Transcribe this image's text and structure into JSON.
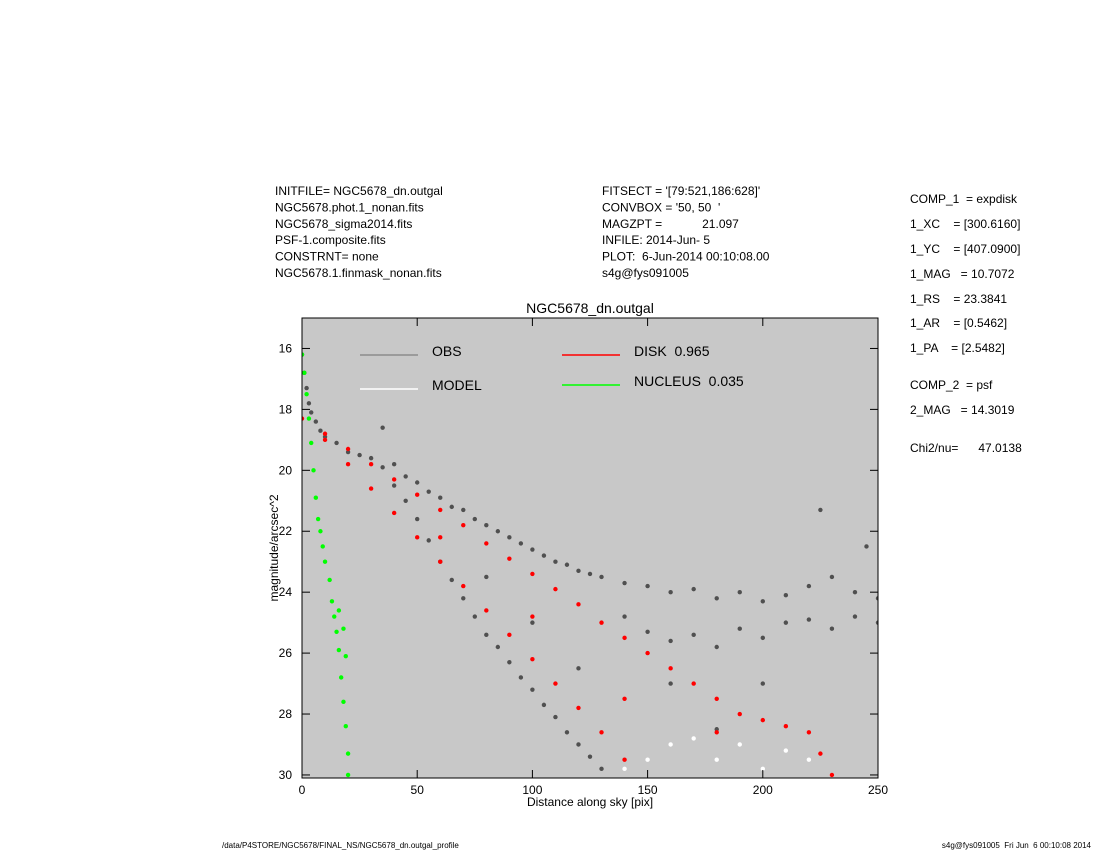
{
  "header": {
    "left": [
      "INITFILE= NGC5678_dn.outgal",
      "NGC5678.phot.1_nonan.fits",
      "NGC5678_sigma2014.fits",
      "PSF-1.composite.fits",
      "CONSTRNT= none",
      "NGC5678.1.finmask_nonan.fits"
    ],
    "middle": [
      "FITSECT = '[79:521,186:628]'",
      "CONVBOX = '50, 50  '",
      "MAGZPT =            21.097",
      "INFILE: 2014-Jun- 5",
      "PLOT:  6-Jun-2014 00:10:08.00",
      "s4g@fys091005"
    ],
    "right": [
      "COMP_1  = expdisk",
      "1_XC    = [300.6160]",
      "1_YC    = [407.0900]",
      "1_MAG   = 10.7072",
      "1_RS    = 23.3841",
      "1_AR    = [0.5462]",
      "1_PA    = [2.5482]",
      "COMP_2  = psf",
      "2_MAG   = 14.3019",
      "Chi2/nu=      47.0138"
    ]
  },
  "footer": {
    "left": "/data/P4STORE/NGC5678/FINAL_NS/NGC5678_dn.outgal_profile",
    "right": "s4g@fys091005  Fri Jun  6 00:10:08 2014"
  },
  "chart_data": {
    "type": "scatter",
    "title": "NGC5678_dn.outgal",
    "x_label": "Distance along sky [pix]",
    "y_label": "magnitude/arcsec^2",
    "xlim": [
      0,
      250
    ],
    "ylim": [
      15,
      30.1
    ],
    "y_reversed": true,
    "xticks": [
      0,
      50,
      100,
      150,
      200,
      250
    ],
    "yticks": [
      16,
      18,
      20,
      22,
      24,
      26,
      28,
      30
    ],
    "background": "#c8c8c8",
    "series": [
      {
        "name": "OBS",
        "color": "#505050",
        "legend_color": "#8c8c8c",
        "x": [
          0,
          1,
          2,
          3,
          4,
          6,
          8,
          10,
          15,
          20,
          25,
          30,
          35,
          35,
          40,
          40,
          45,
          45,
          50,
          50,
          55,
          55,
          60,
          60,
          65,
          65,
          70,
          70,
          75,
          75,
          80,
          80,
          85,
          85,
          90,
          90,
          95,
          95,
          100,
          100,
          105,
          105,
          110,
          110,
          115,
          115,
          120,
          120,
          125,
          125,
          130,
          130,
          140,
          140,
          150,
          150,
          160,
          160,
          170,
          170,
          180,
          180,
          190,
          190,
          200,
          200,
          210,
          210,
          220,
          220,
          230,
          230,
          240,
          240,
          250,
          250,
          225,
          245,
          100,
          80,
          120,
          160,
          180,
          200
        ],
        "values": [
          16.2,
          16.8,
          17.3,
          17.8,
          18.1,
          18.4,
          18.7,
          18.9,
          19.1,
          19.4,
          19.5,
          19.6,
          18.6,
          19.9,
          19.8,
          20.5,
          20.2,
          21.0,
          20.4,
          21.6,
          20.7,
          22.3,
          20.9,
          23.0,
          21.2,
          23.6,
          21.3,
          24.2,
          21.6,
          24.8,
          21.8,
          25.4,
          22.0,
          25.8,
          22.2,
          26.3,
          22.4,
          26.8,
          22.6,
          27.2,
          22.8,
          27.7,
          23.0,
          28.1,
          23.1,
          28.6,
          23.3,
          29.0,
          23.4,
          29.4,
          23.5,
          29.8,
          23.7,
          24.8,
          23.8,
          25.3,
          24.0,
          25.6,
          23.9,
          25.4,
          24.2,
          25.8,
          24.0,
          25.2,
          24.3,
          25.5,
          24.1,
          25.0,
          23.8,
          24.9,
          23.5,
          25.2,
          24.0,
          24.8,
          24.2,
          25.0,
          21.3,
          22.5,
          25.0,
          23.5,
          26.5,
          27.0,
          28.5,
          27.0
        ]
      },
      {
        "name": "MODEL",
        "color": "#ffffff",
        "legend_color": "#ffffff",
        "x": [
          140,
          150,
          160,
          170,
          180,
          190,
          200,
          210,
          220,
          230
        ],
        "values": [
          29.8,
          29.5,
          29.0,
          28.8,
          29.5,
          29.0,
          29.8,
          29.2,
          29.5,
          30.0
        ]
      },
      {
        "name": "DISK  0.965",
        "color": "#ff0000",
        "legend_color": "#ff0000",
        "x": [
          0,
          10,
          20,
          30,
          40,
          50,
          60,
          70,
          80,
          90,
          100,
          110,
          120,
          130,
          140,
          150,
          160,
          170,
          180,
          190,
          200,
          210,
          220,
          225,
          230,
          10,
          20,
          30,
          40,
          50,
          60,
          70,
          80,
          90,
          100,
          110,
          120,
          130,
          140,
          60,
          100,
          140,
          180
        ],
        "values": [
          18.3,
          18.8,
          19.3,
          19.8,
          20.3,
          20.8,
          21.3,
          21.8,
          22.4,
          22.9,
          23.4,
          23.9,
          24.4,
          25.0,
          25.5,
          26.0,
          26.5,
          27.0,
          27.5,
          28.0,
          28.2,
          28.4,
          28.6,
          29.3,
          30.0,
          19.0,
          19.8,
          20.6,
          21.4,
          22.2,
          23.0,
          23.8,
          24.6,
          25.4,
          26.2,
          27.0,
          27.8,
          28.6,
          29.5,
          22.2,
          24.8,
          27.5,
          28.6
        ]
      },
      {
        "name": "NUCLEUS  0.035",
        "color": "#00ff00",
        "legend_color": "#00ff00",
        "x": [
          0,
          1,
          2,
          3,
          4,
          5,
          6,
          7,
          8,
          9,
          10,
          12,
          13,
          14,
          15,
          16,
          17,
          18,
          19,
          20,
          20,
          16,
          18,
          19
        ],
        "values": [
          16.2,
          16.8,
          17.5,
          18.3,
          19.1,
          20.0,
          20.9,
          21.6,
          22.0,
          22.5,
          23.0,
          23.6,
          24.3,
          24.8,
          25.3,
          25.9,
          26.8,
          27.6,
          28.4,
          29.3,
          30.0,
          24.6,
          25.2,
          26.1
        ]
      }
    ]
  }
}
